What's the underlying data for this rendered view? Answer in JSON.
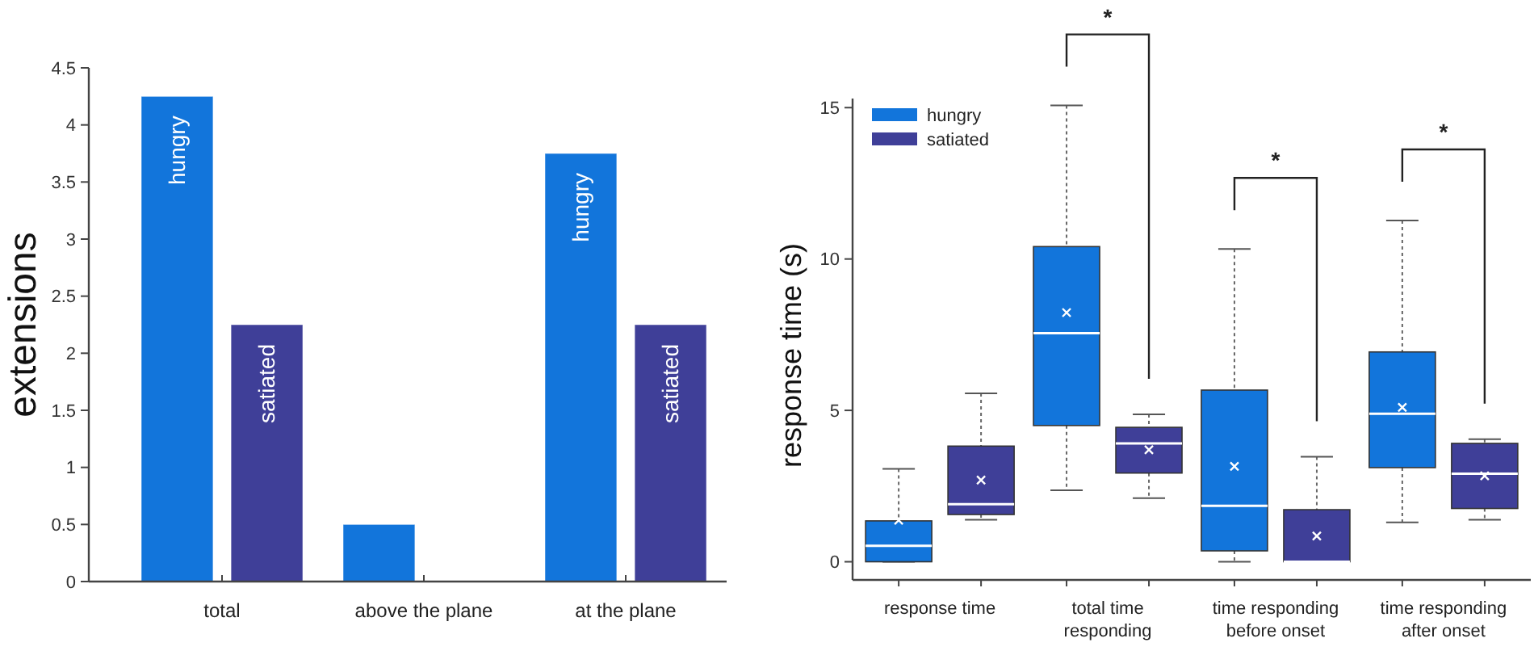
{
  "chart_data": [
    {
      "type": "bar",
      "ylabel": "extensions",
      "categories": [
        "total",
        "above the plane",
        "at the plane"
      ],
      "ylim": [
        0,
        4.5
      ],
      "yticks": [
        0,
        0.5,
        1,
        1.5,
        2,
        2.5,
        3,
        3.5,
        4,
        4.5
      ],
      "legend": false,
      "grid": false,
      "series": [
        {
          "name": "hungry",
          "color": "#1275db",
          "values": [
            4.25,
            0.5,
            3.75
          ]
        },
        {
          "name": "satiated",
          "color": "#3f3f98",
          "values": [
            2.25,
            0,
            2.25
          ]
        }
      ]
    },
    {
      "type": "box",
      "ylabel": "response time (s)",
      "categories": [
        "response time",
        "total time responding",
        "time responding before onset",
        "time responding after onset"
      ],
      "ylim": [
        -0.6,
        15.3
      ],
      "yticks": [
        0,
        5,
        10,
        15
      ],
      "legend": "top left",
      "grid": false,
      "series": [
        {
          "name": "hungry",
          "color": "#1275db",
          "boxes": [
            {
              "low": 0,
              "q1": 0,
              "median": 0.53,
              "q3": 1.35,
              "high": 3.07,
              "mean": 1.37
            },
            {
              "low": 2.36,
              "q1": 4.5,
              "median": 7.55,
              "q3": 10.41,
              "high": 15.07,
              "mean": 8.23
            },
            {
              "low": 0,
              "q1": 0.36,
              "median": 1.85,
              "q3": 5.67,
              "high": 10.33,
              "mean": 3.15
            },
            {
              "low": 1.3,
              "q1": 3.11,
              "median": 4.89,
              "q3": 6.93,
              "high": 11.27,
              "mean": 5.1
            }
          ]
        },
        {
          "name": "satiated",
          "color": "#3f3f98",
          "boxes": [
            {
              "low": 1.39,
              "q1": 1.56,
              "median": 1.9,
              "q3": 3.82,
              "high": 5.56,
              "mean": 2.7
            },
            {
              "low": 2.1,
              "q1": 2.93,
              "median": 3.91,
              "q3": 4.44,
              "high": 4.87,
              "mean": 3.7
            },
            {
              "low": 0,
              "q1": 0,
              "median": 0,
              "q3": 1.72,
              "high": 3.47,
              "mean": 0.85
            },
            {
              "low": 1.39,
              "q1": 1.76,
              "median": 2.91,
              "q3": 3.91,
              "high": 4.05,
              "mean": 2.84
            }
          ]
        }
      ],
      "annotations": [
        "*",
        "*",
        "*"
      ]
    }
  ]
}
